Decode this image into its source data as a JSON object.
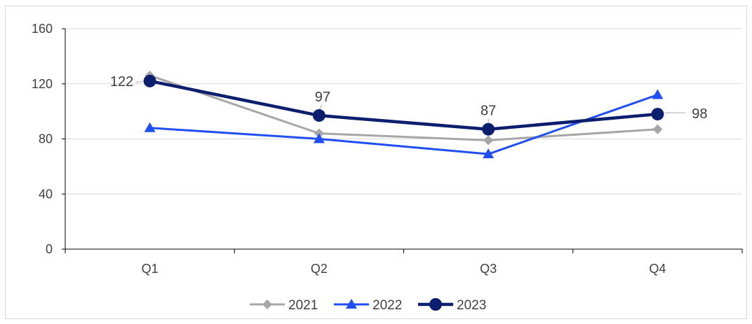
{
  "chart_data": {
    "type": "line",
    "categories": [
      "Q1",
      "Q2",
      "Q3",
      "Q4"
    ],
    "ylim": [
      0,
      160
    ],
    "yticks": [
      0,
      40,
      80,
      120,
      160
    ],
    "grid": true,
    "legend_position": "bottom",
    "series": [
      {
        "name": "2021",
        "values": [
          126,
          84,
          79,
          87
        ],
        "color": "#a6a6a6",
        "marker": "diamond"
      },
      {
        "name": "2022",
        "values": [
          88,
          80,
          69,
          112
        ],
        "color": "#1f4ef5",
        "marker": "triangle"
      },
      {
        "name": "2023",
        "values": [
          122,
          97,
          87,
          98
        ],
        "color": "#0c1f6e",
        "marker": "circle"
      }
    ],
    "data_labels": [
      {
        "series": "2023",
        "index": 0,
        "text": "122"
      },
      {
        "series": "2023",
        "index": 1,
        "text": "97"
      },
      {
        "series": "2023",
        "index": 2,
        "text": "87"
      },
      {
        "series": "2023",
        "index": 3,
        "text": "98"
      }
    ]
  }
}
